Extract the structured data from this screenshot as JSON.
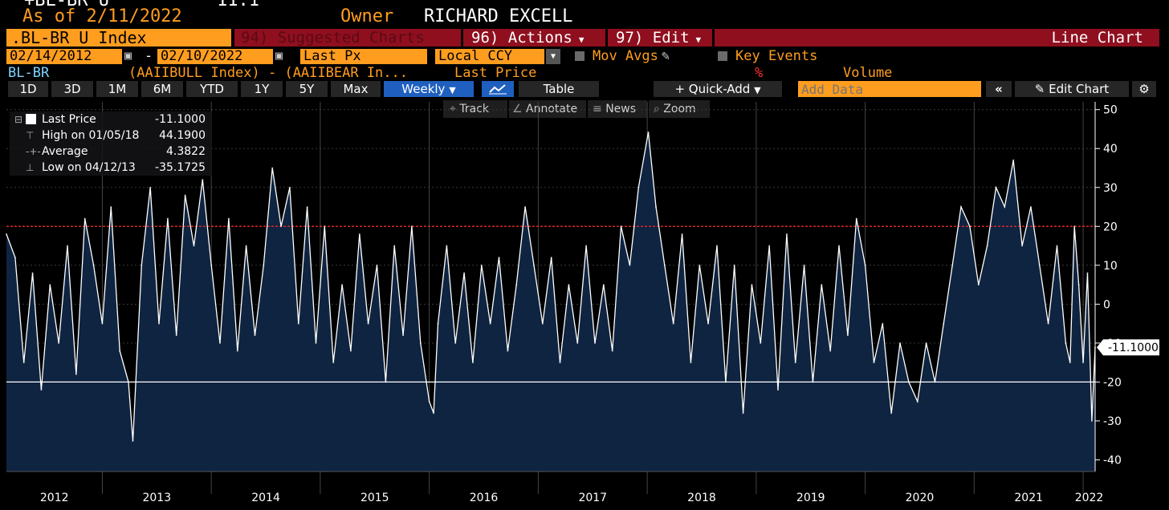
{
  "header": {
    "title_partial": "+BL-BR U",
    "value_partial": "11.1",
    "as_of": "As of 2/11/2022",
    "owner_label": "Owner",
    "owner_name": "RICHARD EXCELL"
  },
  "toolbar1": {
    "security": ".BL-BR U Index",
    "suggested": "94) Suggested Charts",
    "actions": "96) Actions",
    "edit": "97) Edit",
    "chart_type": "Line Chart"
  },
  "toolbar2": {
    "start_date": "02/14/2012",
    "end_date": "02/10/2022",
    "field": "Last Px",
    "currency": "Local CCY",
    "mov_avgs": "Mov Avgs",
    "key_events": "Key Events"
  },
  "legend_line": {
    "ticker": "BL-BR",
    "expression": "(AAIIBULL Index) - (AAIIBEAR In...",
    "last_price": "Last Price",
    "percent": "%",
    "volume": "Volume"
  },
  "periods": [
    "1D",
    "3D",
    "1M",
    "6M",
    "YTD",
    "1Y",
    "5Y",
    "Max"
  ],
  "frequency": "Weekly",
  "table_label": "Table",
  "quick_add": "+ Quick-Add",
  "add_data_placeholder": "Add Data",
  "edit_chart": "Edit Chart",
  "tools": {
    "track": "Track",
    "annotate": "Annotate",
    "news": "News",
    "zoom": "Zoom"
  },
  "stats": {
    "last_label": "Last Price",
    "last_value": "-11.1000",
    "high_label": "High on 01/05/18",
    "high_value": "44.1900",
    "avg_label": "Average",
    "avg_value": "4.3822",
    "low_label": "Low on 04/12/13",
    "low_value": "-35.1725"
  },
  "last_tag": "-11.1000",
  "colors": {
    "accent": "#ff9d1f",
    "red_bar": "#8f0f1f",
    "fill": "#0f2440",
    "line": "#ffffff",
    "ref_red": "#ff2a2a",
    "blue_btn": "#1f5fbf"
  },
  "chart_data": {
    "type": "area",
    "title": "",
    "xlabel": "",
    "ylabel": "",
    "ylim": [
      -43,
      52
    ],
    "xlim": [
      2012.12,
      2022.11
    ],
    "yticks": [
      50,
      40,
      30,
      20,
      10,
      0,
      -10,
      -20,
      -30,
      -40
    ],
    "xticks": [
      "2012",
      "2013",
      "2014",
      "2015",
      "2016",
      "2017",
      "2018",
      "2019",
      "2020",
      "2021",
      "2022"
    ],
    "reference_lines": [
      {
        "y": 20,
        "color": "#ff2a2a",
        "style": "dotted"
      },
      {
        "y": -20,
        "color": "#ffffff",
        "style": "solid"
      }
    ],
    "grid": true,
    "series": [
      {
        "name": "Last Price",
        "x": [
          2012.12,
          2012.2,
          2012.28,
          2012.36,
          2012.44,
          2012.52,
          2012.6,
          2012.68,
          2012.76,
          2012.84,
          2012.92,
          2013.0,
          2013.08,
          2013.16,
          2013.24,
          2013.28,
          2013.36,
          2013.44,
          2013.52,
          2013.6,
          2013.68,
          2013.76,
          2013.84,
          2013.92,
          2014.0,
          2014.08,
          2014.16,
          2014.24,
          2014.32,
          2014.4,
          2014.48,
          2014.56,
          2014.64,
          2014.72,
          2014.8,
          2014.88,
          2014.96,
          2015.04,
          2015.12,
          2015.2,
          2015.28,
          2015.36,
          2015.44,
          2015.52,
          2015.6,
          2015.68,
          2015.76,
          2015.84,
          2015.92,
          2016.0,
          2016.04,
          2016.08,
          2016.16,
          2016.24,
          2016.32,
          2016.4,
          2016.48,
          2016.56,
          2016.64,
          2016.72,
          2016.8,
          2016.88,
          2016.96,
          2017.04,
          2017.12,
          2017.2,
          2017.28,
          2017.36,
          2017.44,
          2017.52,
          2017.6,
          2017.68,
          2017.76,
          2017.84,
          2017.92,
          2018.01,
          2018.08,
          2018.16,
          2018.24,
          2018.32,
          2018.4,
          2018.48,
          2018.56,
          2018.64,
          2018.72,
          2018.8,
          2018.88,
          2018.96,
          2019.04,
          2019.12,
          2019.2,
          2019.28,
          2019.36,
          2019.44,
          2019.52,
          2019.6,
          2019.68,
          2019.76,
          2019.84,
          2019.92,
          2020.0,
          2020.08,
          2020.16,
          2020.24,
          2020.32,
          2020.4,
          2020.48,
          2020.56,
          2020.64,
          2020.72,
          2020.8,
          2020.88,
          2020.96,
          2021.04,
          2021.12,
          2021.2,
          2021.28,
          2021.36,
          2021.44,
          2021.52,
          2021.6,
          2021.68,
          2021.76,
          2021.84,
          2021.88,
          2021.92,
          2021.96,
          2022.0,
          2022.04,
          2022.08,
          2022.11
        ],
        "y": [
          18,
          12,
          -15,
          8,
          -22,
          5,
          -10,
          15,
          -18,
          22,
          10,
          -5,
          25,
          -12,
          -20,
          -35.17,
          10,
          30,
          -5,
          22,
          -8,
          28,
          15,
          32,
          10,
          -10,
          22,
          -12,
          15,
          -8,
          10,
          35,
          20,
          30,
          -5,
          25,
          -10,
          20,
          -15,
          5,
          -12,
          18,
          -5,
          10,
          -20,
          15,
          -8,
          20,
          -10,
          -25,
          -28,
          -5,
          15,
          -10,
          8,
          -15,
          10,
          -5,
          12,
          -12,
          5,
          25,
          10,
          -5,
          12,
          -15,
          5,
          -10,
          15,
          -10,
          5,
          -12,
          20,
          10,
          30,
          44.19,
          25,
          10,
          -5,
          18,
          -15,
          10,
          -5,
          15,
          -20,
          10,
          -28,
          5,
          -10,
          15,
          -22,
          18,
          -15,
          10,
          -20,
          5,
          -12,
          15,
          -8,
          22,
          10,
          -15,
          -5,
          -28,
          -10,
          -20,
          -25,
          -10,
          -20,
          -5,
          10,
          25,
          20,
          5,
          15,
          30,
          25,
          37,
          15,
          25,
          10,
          -5,
          15,
          -10,
          -15,
          20,
          5,
          -15,
          8,
          -30,
          -11.1
        ]
      }
    ]
  }
}
